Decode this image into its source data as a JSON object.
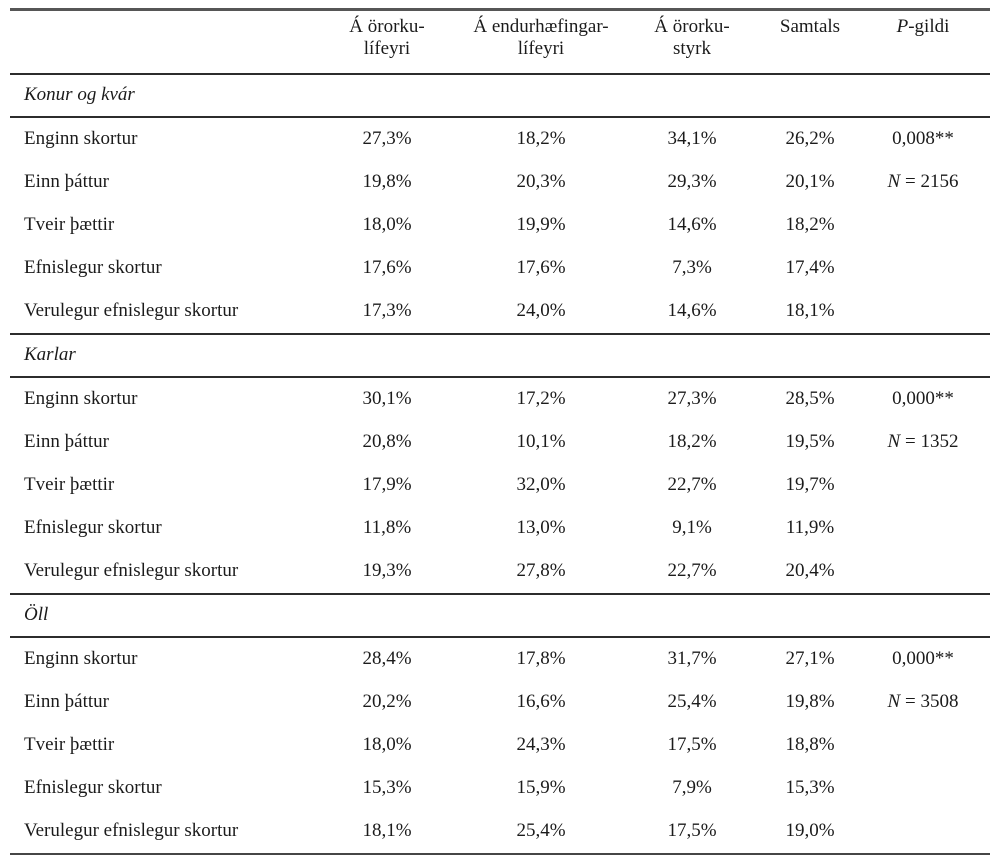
{
  "table": {
    "header": {
      "col1": "Á örorku-\nlífeyri",
      "col2": "Á endurhæfingar-\nlífeyri",
      "col3": "Á örorku-\nstyrk",
      "col4": "Samtals",
      "p_prefix": "P",
      "p_suffix": "-gildi"
    },
    "sections": [
      {
        "title": "Konur og kvár",
        "p_value": "0,008**",
        "n_prefix": "N",
        "n_rest": " = 2156",
        "rows": [
          {
            "label": "Enginn skortur",
            "values": [
              "27,3%",
              "18,2%",
              "34,1%",
              "26,2%"
            ]
          },
          {
            "label": "Einn þáttur",
            "values": [
              "19,8%",
              "20,3%",
              "29,3%",
              "20,1%"
            ]
          },
          {
            "label": "Tveir þættir",
            "values": [
              "18,0%",
              "19,9%",
              "14,6%",
              "18,2%"
            ]
          },
          {
            "label": "Efnislegur skortur",
            "values": [
              "17,6%",
              "17,6%",
              "7,3%",
              "17,4%"
            ]
          },
          {
            "label": "Verulegur efnislegur skortur",
            "values": [
              "17,3%",
              "24,0%",
              "14,6%",
              "18,1%"
            ]
          }
        ]
      },
      {
        "title": "Karlar",
        "p_value": "0,000**",
        "n_prefix": "N",
        "n_rest": " = 1352",
        "rows": [
          {
            "label": "Enginn skortur",
            "values": [
              "30,1%",
              "17,2%",
              "27,3%",
              "28,5%"
            ]
          },
          {
            "label": "Einn þáttur",
            "values": [
              "20,8%",
              "10,1%",
              "18,2%",
              "19,5%"
            ]
          },
          {
            "label": "Tveir þættir",
            "values": [
              "17,9%",
              "32,0%",
              "22,7%",
              "19,7%"
            ]
          },
          {
            "label": "Efnislegur skortur",
            "values": [
              "11,8%",
              "13,0%",
              "9,1%",
              "11,9%"
            ]
          },
          {
            "label": "Verulegur efnislegur skortur",
            "values": [
              "19,3%",
              "27,8%",
              "22,7%",
              "20,4%"
            ]
          }
        ]
      },
      {
        "title": "Öll",
        "p_value": "0,000**",
        "n_prefix": "N",
        "n_rest": " = 3508",
        "rows": [
          {
            "label": "Enginn skortur",
            "values": [
              "28,4%",
              "17,8%",
              "31,7%",
              "27,1%"
            ]
          },
          {
            "label": "Einn þáttur",
            "values": [
              "20,2%",
              "16,6%",
              "25,4%",
              "19,8%"
            ]
          },
          {
            "label": "Tveir þættir",
            "values": [
              "18,0%",
              "24,3%",
              "17,5%",
              "18,8%"
            ]
          },
          {
            "label": "Efnislegur skortur",
            "values": [
              "15,3%",
              "15,9%",
              "7,9%",
              "15,3%"
            ]
          },
          {
            "label": "Verulegur efnislegur skortur",
            "values": [
              "18,1%",
              "25,4%",
              "17,5%",
              "19,0%"
            ]
          }
        ]
      }
    ],
    "colors": {
      "text": "#1b1b1b",
      "rule": "#2c2c2c",
      "rule_heavy": "#565656"
    }
  }
}
